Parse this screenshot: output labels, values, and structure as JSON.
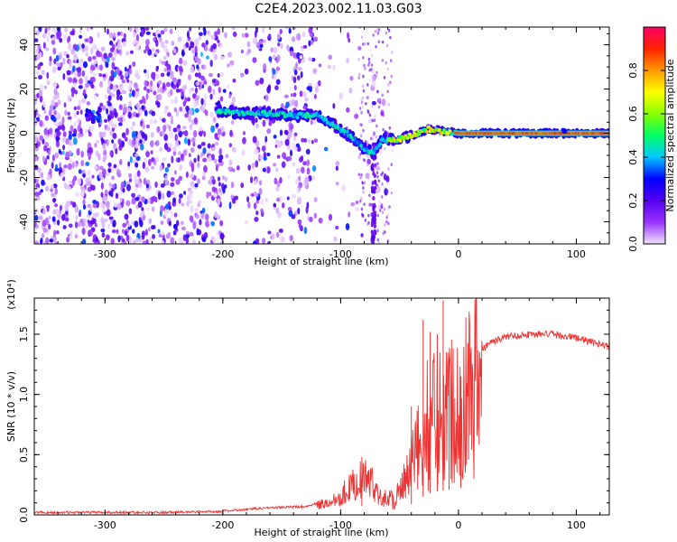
{
  "title": "C2E4.2023.002.11.03.G03",
  "chart_data": [
    {
      "type": "heatmap",
      "title": "",
      "xlabel": "Height of straight line (km)",
      "ylabel": "Frequency (Hz)",
      "xlim": [
        -360,
        128
      ],
      "ylim": [
        -50,
        48
      ],
      "xticks": [
        -300,
        -200,
        -100,
        0,
        100
      ],
      "yticks": [
        -40,
        -20,
        0,
        20,
        40
      ],
      "colorbar": {
        "label": "Normalized spectral amplitude",
        "range": [
          0,
          1
        ],
        "ticks": [
          "0.0",
          "0.2",
          "0.4",
          "0.6",
          "0.8"
        ],
        "colors": [
          "#f0e0ff",
          "#9933ff",
          "#5500ee",
          "#0000ff",
          "#00c8ff",
          "#00ff66",
          "#88ff00",
          "#ffff00",
          "#ff9900",
          "#ff2200",
          "#ff0066"
        ]
      },
      "features": {
        "noise_region_x": [
          -360,
          -120
        ],
        "ridge": [
          {
            "x": -200,
            "y": 10
          },
          {
            "x": -180,
            "y": 9
          },
          {
            "x": -160,
            "y": 9
          },
          {
            "x": -140,
            "y": 8
          },
          {
            "x": -120,
            "y": 8
          },
          {
            "x": -110,
            "y": 5
          },
          {
            "x": -100,
            "y": 2
          },
          {
            "x": -90,
            "y": -2
          },
          {
            "x": -80,
            "y": -7
          },
          {
            "x": -72,
            "y": -9
          },
          {
            "x": -65,
            "y": -3
          },
          {
            "x": -55,
            "y": -3
          },
          {
            "x": -45,
            "y": -2
          },
          {
            "x": -35,
            "y": 0
          },
          {
            "x": -25,
            "y": 2
          },
          {
            "x": -15,
            "y": 1
          },
          {
            "x": 0,
            "y": 0
          },
          {
            "x": 50,
            "y": 0
          },
          {
            "x": 128,
            "y": 0
          }
        ],
        "vertical_streak_x": -72,
        "isolated_blob": {
          "x": -310,
          "y": 8
        }
      }
    },
    {
      "type": "line",
      "title": "",
      "xlabel": "Height of straight line (km)",
      "ylabel": "SNR (10 * v/v)",
      "y_multiplier": "(x10⁴)",
      "xlim": [
        -360,
        128
      ],
      "ylim": [
        0,
        1.8
      ],
      "xticks": [
        -300,
        -200,
        -100,
        0,
        100
      ],
      "yticks": [
        "0.0",
        "0.5",
        "1.0",
        "1.5"
      ],
      "color": "#ee3333",
      "envelope": [
        {
          "x": -360,
          "y": 0.02
        },
        {
          "x": -300,
          "y": 0.02
        },
        {
          "x": -250,
          "y": 0.02
        },
        {
          "x": -200,
          "y": 0.03
        },
        {
          "x": -160,
          "y": 0.06
        },
        {
          "x": -130,
          "y": 0.07
        },
        {
          "x": -110,
          "y": 0.12
        },
        {
          "x": -100,
          "y": 0.2
        },
        {
          "x": -90,
          "y": 0.3
        },
        {
          "x": -80,
          "y": 0.38
        },
        {
          "x": -72,
          "y": 0.3
        },
        {
          "x": -65,
          "y": 0.18
        },
        {
          "x": -55,
          "y": 0.15
        },
        {
          "x": -45,
          "y": 0.3
        },
        {
          "x": -35,
          "y": 0.6
        },
        {
          "x": -25,
          "y": 0.9
        },
        {
          "x": -15,
          "y": 1.0
        },
        {
          "x": -5,
          "y": 1.05
        },
        {
          "x": 5,
          "y": 1.15
        },
        {
          "x": 15,
          "y": 1.3
        },
        {
          "x": 25,
          "y": 1.42
        },
        {
          "x": 40,
          "y": 1.48
        },
        {
          "x": 60,
          "y": 1.5
        },
        {
          "x": 80,
          "y": 1.5
        },
        {
          "x": 100,
          "y": 1.47
        },
        {
          "x": 115,
          "y": 1.43
        },
        {
          "x": 128,
          "y": 1.4
        }
      ],
      "spikes": [
        {
          "x": -82,
          "y": 0.48
        },
        {
          "x": -40,
          "y": 0.9
        },
        {
          "x": -30,
          "y": 1.62
        },
        {
          "x": -24,
          "y": 1.52
        },
        {
          "x": -18,
          "y": 1.5
        },
        {
          "x": -13,
          "y": 1.78
        },
        {
          "x": -8,
          "y": 1.3
        },
        {
          "x": 2,
          "y": 1.15
        }
      ]
    }
  ]
}
